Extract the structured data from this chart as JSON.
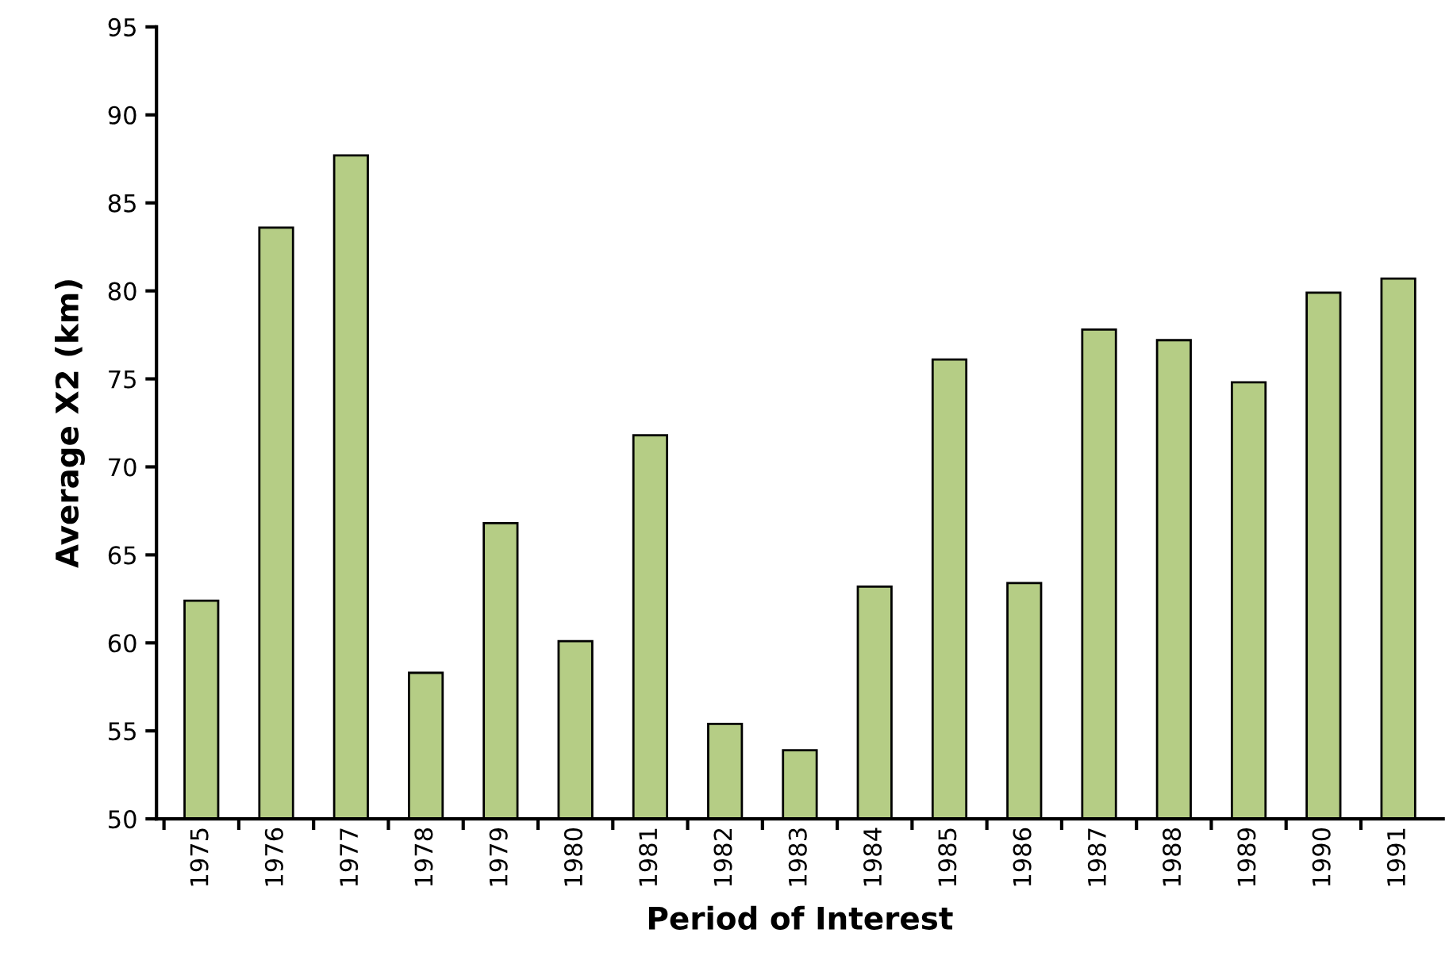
{
  "chart_data": {
    "type": "bar",
    "xlabel": "Period of Interest",
    "ylabel": "Average X2 (km)",
    "categories": [
      "1975",
      "1976",
      "1977",
      "1978",
      "1979",
      "1980",
      "1981",
      "1982",
      "1983",
      "1984",
      "1985",
      "1986",
      "1987",
      "1988",
      "1989",
      "1990",
      "1991"
    ],
    "values": [
      62.4,
      83.6,
      87.7,
      58.3,
      66.8,
      60.1,
      71.8,
      55.4,
      53.9,
      63.2,
      76.1,
      63.4,
      77.8,
      77.2,
      74.8,
      79.9,
      80.7
    ],
    "color": "#b5cd85",
    "ylim": [
      50,
      95
    ],
    "yticks": [
      50,
      55,
      60,
      65,
      70,
      75,
      80,
      85,
      90,
      95
    ],
    "grid": false,
    "legend": false
  }
}
